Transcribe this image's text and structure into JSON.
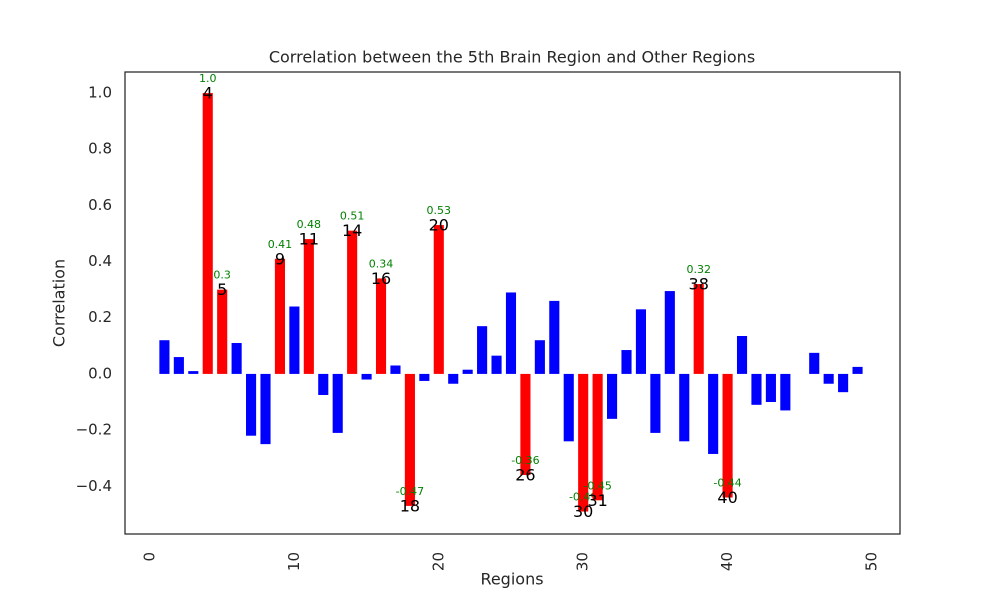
{
  "chart_data": {
    "type": "bar",
    "title": "Correlation between the 5th Brain Region and Other Regions",
    "x_label": "Regions",
    "y_label": "Correlation",
    "xlim": [
      -1.73,
      51.94
    ],
    "ylim": [
      -0.57,
      1.075
    ],
    "xticks": [
      0,
      10,
      20,
      30,
      40,
      50
    ],
    "yticks": [
      {
        "value": -0.4,
        "label": "−0.4"
      },
      {
        "value": -0.2,
        "label": "−0.2"
      },
      {
        "value": 0,
        "label": "0.0"
      },
      {
        "value": 0.2,
        "label": "0.2"
      },
      {
        "value": 0.4,
        "label": "0.4"
      },
      {
        "value": 0.6,
        "label": "0.6"
      },
      {
        "value": 0.8,
        "label": "0.8"
      },
      {
        "value": 1.0,
        "label": "1.0"
      }
    ],
    "grid": false,
    "series": [
      {
        "color": "#0000ff",
        "x": [
          1,
          2,
          3,
          6,
          7,
          8,
          10,
          12,
          13,
          15,
          17,
          19,
          21,
          22,
          23,
          24,
          25,
          27,
          28,
          29,
          32,
          33,
          34,
          35,
          36,
          37,
          39,
          41,
          42,
          43,
          44,
          46,
          47,
          48,
          49
        ],
        "values": [
          0.12,
          0.06,
          0.01,
          0.11,
          -0.22,
          -0.25,
          0.24,
          -0.075,
          -0.21,
          -0.02,
          0.03,
          -0.025,
          -0.035,
          0.015,
          0.17,
          0.065,
          0.29,
          0.12,
          0.26,
          -0.24,
          -0.16,
          0.085,
          0.23,
          -0.21,
          0.295,
          -0.24,
          -0.285,
          0.135,
          -0.11,
          -0.1,
          -0.13,
          0.075,
          -0.035,
          -0.065,
          0.025
        ]
      },
      {
        "color": "#ff0000",
        "label_color": "#008000",
        "x": [
          4,
          5,
          9,
          11,
          14,
          16,
          18,
          20,
          26,
          30,
          31,
          38,
          40
        ],
        "values": [
          1.0,
          0.3,
          0.41,
          0.48,
          0.51,
          0.34,
          -0.47,
          0.53,
          -0.36,
          -0.49,
          -0.45,
          0.32,
          -0.44
        ],
        "value_labels": [
          "1.0",
          "0.3",
          "0.41",
          "0.48",
          "0.51",
          "0.34",
          "-0.47",
          "0.53",
          "-0.36",
          "-0.49",
          "-0.45",
          "0.32",
          "-0.44"
        ]
      }
    ]
  }
}
